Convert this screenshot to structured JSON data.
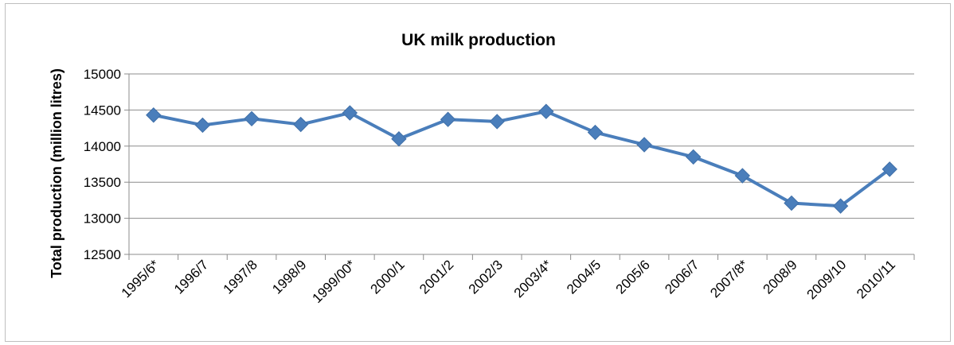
{
  "chart_data": {
    "type": "line",
    "title": "UK milk production",
    "xlabel": "",
    "ylabel": "Total production (million litres)",
    "ylim": [
      12500,
      15000
    ],
    "yticks": [
      12500,
      13000,
      13500,
      14000,
      14500,
      15000
    ],
    "grid": true,
    "legend": "none",
    "categories": [
      "1995/6*",
      "1996/7",
      "1997/8",
      "1998/9",
      "1999/00*",
      "2000/1",
      "2001/2",
      "2002/3",
      "2003/4*",
      "2004/5",
      "2005/6",
      "2006/7",
      "2007/8*",
      "2008/9",
      "2009/10",
      "2010/11"
    ],
    "series": [
      {
        "values": [
          14430,
          14290,
          14380,
          14300,
          14460,
          14100,
          14370,
          14340,
          14480,
          14190,
          14020,
          13850,
          13590,
          13210,
          13170,
          13680
        ],
        "color": "#4a7ebb",
        "marker": "diamond"
      }
    ]
  }
}
